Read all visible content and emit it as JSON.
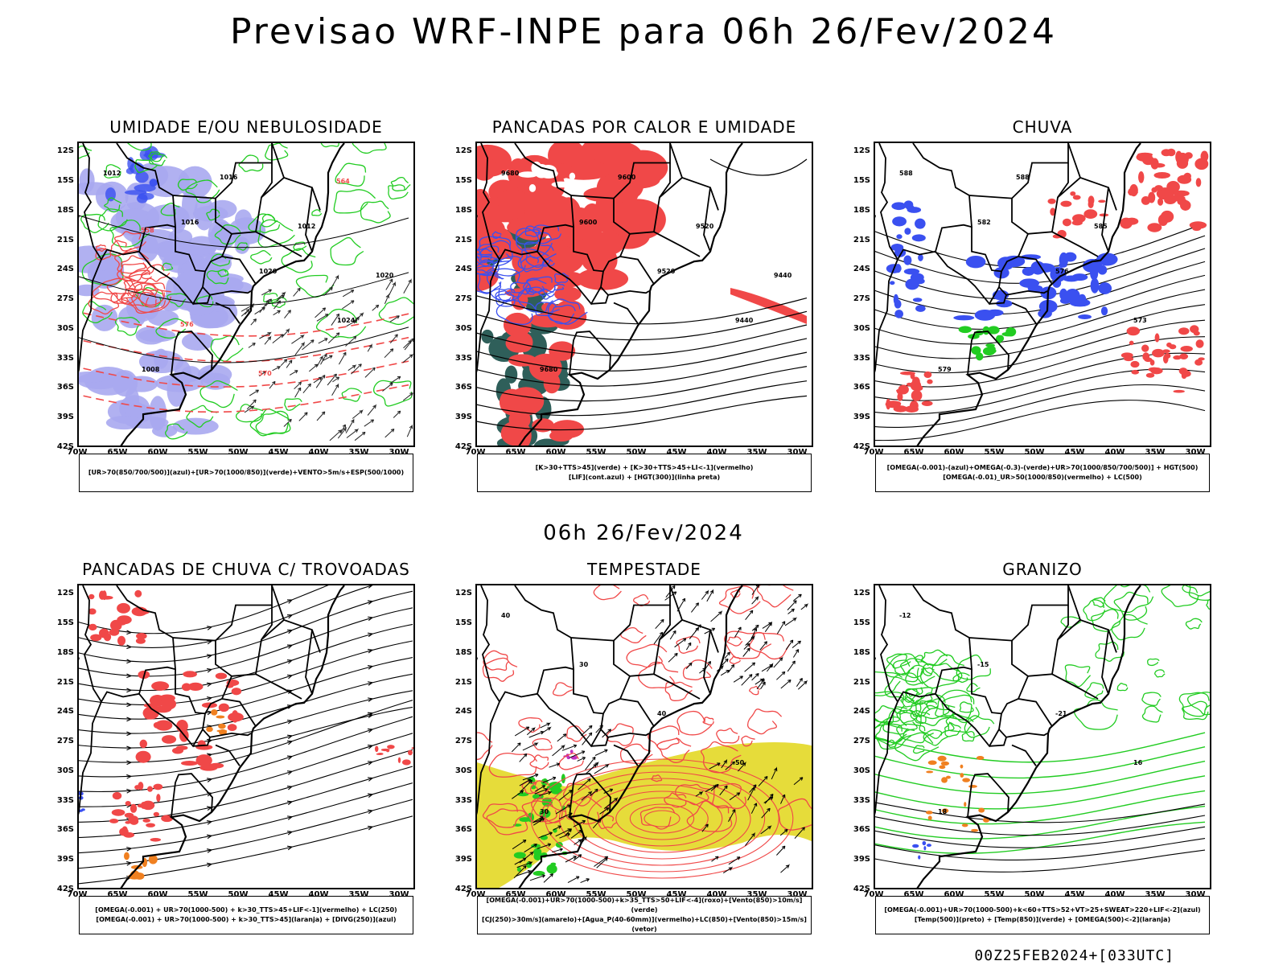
{
  "main_title": "Previsao WRF-INPE  para 06h 26/Fev/2024",
  "mid_title": "06h 26/Fev/2024",
  "footer": "00Z25FEB2024+[033UTC]",
  "lat_ticks": [
    "12S",
    "15S",
    "18S",
    "21S",
    "24S",
    "27S",
    "30S",
    "33S",
    "36S",
    "39S",
    "42S"
  ],
  "lon_ticks": [
    "70W",
    "65W",
    "60W",
    "55W",
    "50W",
    "45W",
    "40W",
    "35W",
    "30W"
  ],
  "colors": {
    "red": "#f04848",
    "blue": "#3a50f0",
    "green": "#22cc22",
    "lavender": "#a8a8f0",
    "darkteal": "#2f5f5a",
    "yellow": "#e6dc3a",
    "orange": "#f08020"
  },
  "panels": [
    {
      "title": "UMIDADE E/OU NEBULOSIDADE",
      "legend": [
        "[UR>70(850/700/500)](azul)+[UR>70(1000/850)](verde)+VENTO>5m/s+ESP(500/1000)"
      ],
      "contour_labels": [
        "1012",
        "1016",
        "1020",
        "1024",
        "1008",
        "1016",
        "1012",
        "1020",
        "576",
        "570",
        "564",
        "558"
      ]
    },
    {
      "title": "PANCADAS POR CALOR E UMIDADE",
      "legend": [
        "[K>30+TTS>45](verde) + [K>30+TTS>45+LI<-1](vermelho)",
        "[LIF](cont.azul) + [HGT(300)](linha preta)"
      ],
      "contour_labels": [
        "9680",
        "9600",
        "9520",
        "9440",
        "9680",
        "9600",
        "9520",
        "9440"
      ]
    },
    {
      "title": "CHUVA",
      "legend": [
        "[OMEGA(-0.001)-(azul)+OMEGA(-0.3)-(verde)+UR>70(1000/850/700/500)] + HGT(500)",
        "[OMEGA(-0.01)_UR>50(1000/850)(vermelho) + LC(500)"
      ],
      "contour_labels": [
        "588",
        "582",
        "576",
        "573",
        "579",
        "588",
        "585"
      ]
    },
    {
      "title": "PANCADAS DE CHUVA C/ TROVOADAS",
      "legend": [
        "[OMEGA(-0.001) + UR>70(1000-500) + k>30_TTS>45+LIF<-1](vermelho) + LC(250)",
        "[OMEGA(-0.001) + UR>70(1000-500) + k>30_TTS>45](laranja) + [DIVG(250)](azul)"
      ],
      "contour_labels": []
    },
    {
      "title": "TEMPESTADE",
      "legend": [
        "[OMEGA(-0.001)+UR>70(1000-500)+k>35_TTS>50+LIF<-4](roxo)+[Vento(850)>10m/s](verde)",
        "[CJ(250)>30m/s](amarelo)+[Agua_P(40-60mm)](vermelho)+LC(850)+[Vento(850)>15m/s](vetor)"
      ],
      "contour_labels": [
        "40",
        "30",
        "40",
        "50",
        "30"
      ]
    },
    {
      "title": "GRANIZO",
      "legend": [
        "[OMEGA(-0.001)+UR>70(1000-500)+k<60+TTS>52+VT>25+SWEAT>220+LIF<-2](azul)",
        "[Temp(500)](preto) + [Temp(850)](verde) + [OMEGA(500)<-2](laranja)"
      ],
      "contour_labels": [
        "-12",
        "-15",
        "-21",
        "16",
        "18"
      ]
    }
  ]
}
